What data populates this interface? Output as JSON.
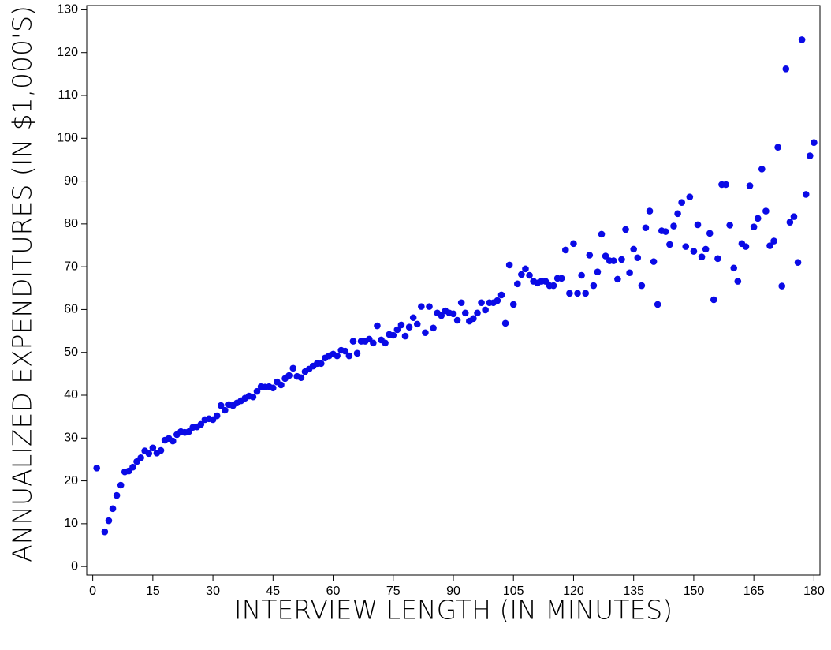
{
  "chart_data": {
    "type": "scatter",
    "x_label": "INTERVIEW LENGTH (IN MINUTES)",
    "y_label": "ANNUALIZED EXPENDITURES (IN $1,000'S)",
    "color": "#0a0ae6",
    "xlim": [
      -1.5,
      181.5
    ],
    "ylim": [
      -2,
      131
    ],
    "xticks": [
      0,
      15,
      30,
      45,
      60,
      75,
      90,
      105,
      120,
      135,
      150,
      165,
      180
    ],
    "yticks": [
      0,
      10,
      20,
      30,
      40,
      50,
      60,
      70,
      80,
      90,
      100,
      110,
      120,
      130
    ],
    "x": [
      1,
      3,
      4,
      5,
      6,
      7,
      8,
      9,
      10,
      11,
      12,
      13,
      14,
      15,
      16,
      17,
      18,
      19,
      20,
      21,
      22,
      23,
      24,
      25,
      26,
      27,
      28,
      29,
      30,
      31,
      32,
      33,
      34,
      35,
      36,
      37,
      38,
      39,
      40,
      41,
      42,
      43,
      44,
      45,
      46,
      47,
      48,
      49,
      50,
      51,
      52,
      53,
      54,
      55,
      56,
      57,
      58,
      59,
      60,
      61,
      62,
      63,
      64,
      65,
      66,
      67,
      68,
      69,
      70,
      71,
      72,
      73,
      74,
      75,
      76,
      77,
      78,
      79,
      80,
      81,
      82,
      83,
      84,
      85,
      86,
      87,
      88,
      89,
      90,
      91,
      92,
      93,
      94,
      95,
      96,
      97,
      98,
      99,
      100,
      101,
      102,
      103,
      104,
      105,
      106,
      107,
      108,
      109,
      110,
      111,
      112,
      113,
      114,
      115,
      116,
      117,
      118,
      119,
      120,
      121,
      122,
      123,
      124,
      125,
      126,
      127,
      128,
      129,
      130,
      131,
      132,
      133,
      134,
      135,
      136,
      137,
      138,
      139,
      140,
      141,
      142,
      143,
      144,
      145,
      146,
      147,
      148,
      149,
      150,
      151,
      152,
      153,
      154,
      155,
      156,
      157,
      158,
      159,
      160,
      161,
      162,
      163,
      164,
      165,
      166,
      167,
      168,
      169,
      170,
      171,
      172,
      173,
      174,
      175,
      176,
      177,
      178,
      179,
      180
    ],
    "y": [
      23.0,
      8.1,
      10.7,
      13.5,
      16.6,
      19.0,
      22.1,
      22.3,
      23.2,
      24.5,
      25.4,
      27.0,
      26.4,
      27.7,
      26.5,
      27.1,
      29.5,
      29.9,
      29.3,
      30.8,
      31.5,
      31.3,
      31.5,
      32.5,
      32.6,
      33.2,
      34.3,
      34.5,
      34.3,
      35.2,
      37.6,
      36.5,
      37.8,
      37.6,
      38.2,
      38.7,
      39.3,
      39.8,
      39.6,
      40.9,
      42.0,
      41.9,
      42.0,
      41.7,
      43.1,
      42.4,
      43.9,
      44.6,
      46.3,
      44.4,
      44.1,
      45.5,
      46.1,
      46.8,
      47.4,
      47.4,
      48.7,
      49.2,
      49.6,
      49.2,
      50.5,
      50.3,
      49.2,
      52.6,
      49.8,
      52.6,
      52.6,
      53.1,
      52.2,
      56.2,
      52.9,
      52.2,
      54.2,
      54.0,
      55.3,
      56.4,
      53.8,
      55.9,
      58.1,
      56.6,
      60.7,
      54.6,
      60.7,
      55.7,
      59.2,
      58.6,
      59.7,
      59.2,
      59.0,
      57.5,
      61.6,
      59.2,
      57.3,
      57.9,
      59.2,
      61.6,
      59.9,
      61.6,
      61.6,
      62.1,
      63.4,
      56.8,
      70.4,
      61.2,
      66.0,
      68.2,
      69.5,
      68.0,
      66.6,
      66.2,
      66.6,
      66.6,
      65.6,
      65.6,
      67.3,
      67.3,
      73.9,
      63.8,
      75.4,
      63.8,
      68.0,
      63.8,
      72.7,
      65.6,
      68.8,
      77.6,
      72.5,
      71.4,
      71.4,
      67.1,
      71.7,
      78.7,
      68.6,
      74.1,
      72.1,
      65.6,
      79.1,
      83.0,
      71.2,
      61.2,
      78.4,
      78.2,
      75.2,
      79.5,
      82.4,
      85.0,
      74.7,
      86.3,
      73.6,
      79.8,
      72.3,
      74.1,
      77.8,
      62.3,
      71.9,
      89.2,
      89.2,
      79.7,
      69.7,
      66.6,
      75.4,
      74.7,
      88.9,
      79.3,
      81.3,
      92.8,
      83.0,
      74.9,
      76.0,
      97.9,
      65.5,
      116.2,
      80.4,
      81.7,
      71.0,
      123.0,
      86.9,
      95.9,
      99.0
    ]
  }
}
